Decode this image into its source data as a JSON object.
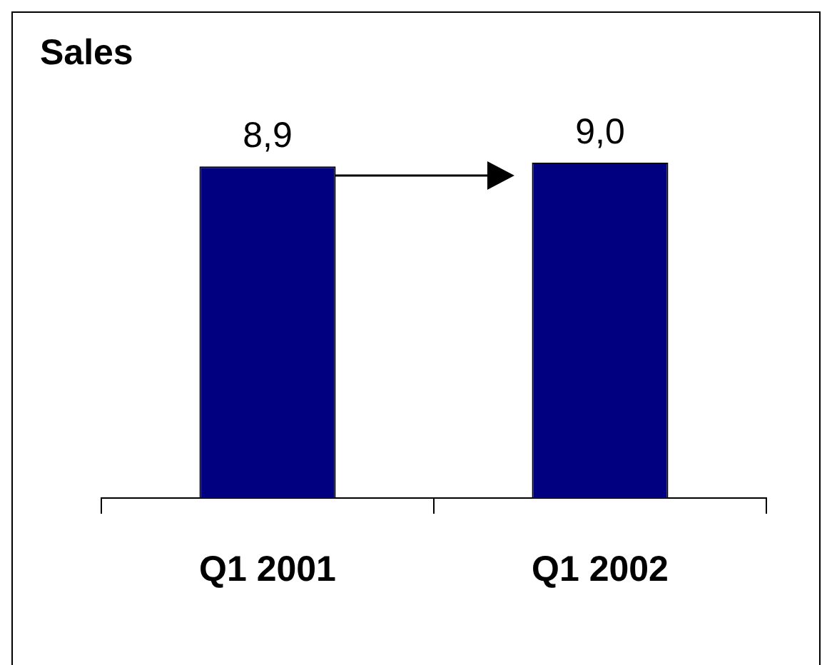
{
  "chart_data": {
    "type": "bar",
    "title": "Sales",
    "categories": [
      "Q1 2001",
      "Q1 2002"
    ],
    "values": [
      8.9,
      9.0
    ],
    "value_labels": [
      "8,9",
      "9,0"
    ],
    "color": "#000080"
  }
}
